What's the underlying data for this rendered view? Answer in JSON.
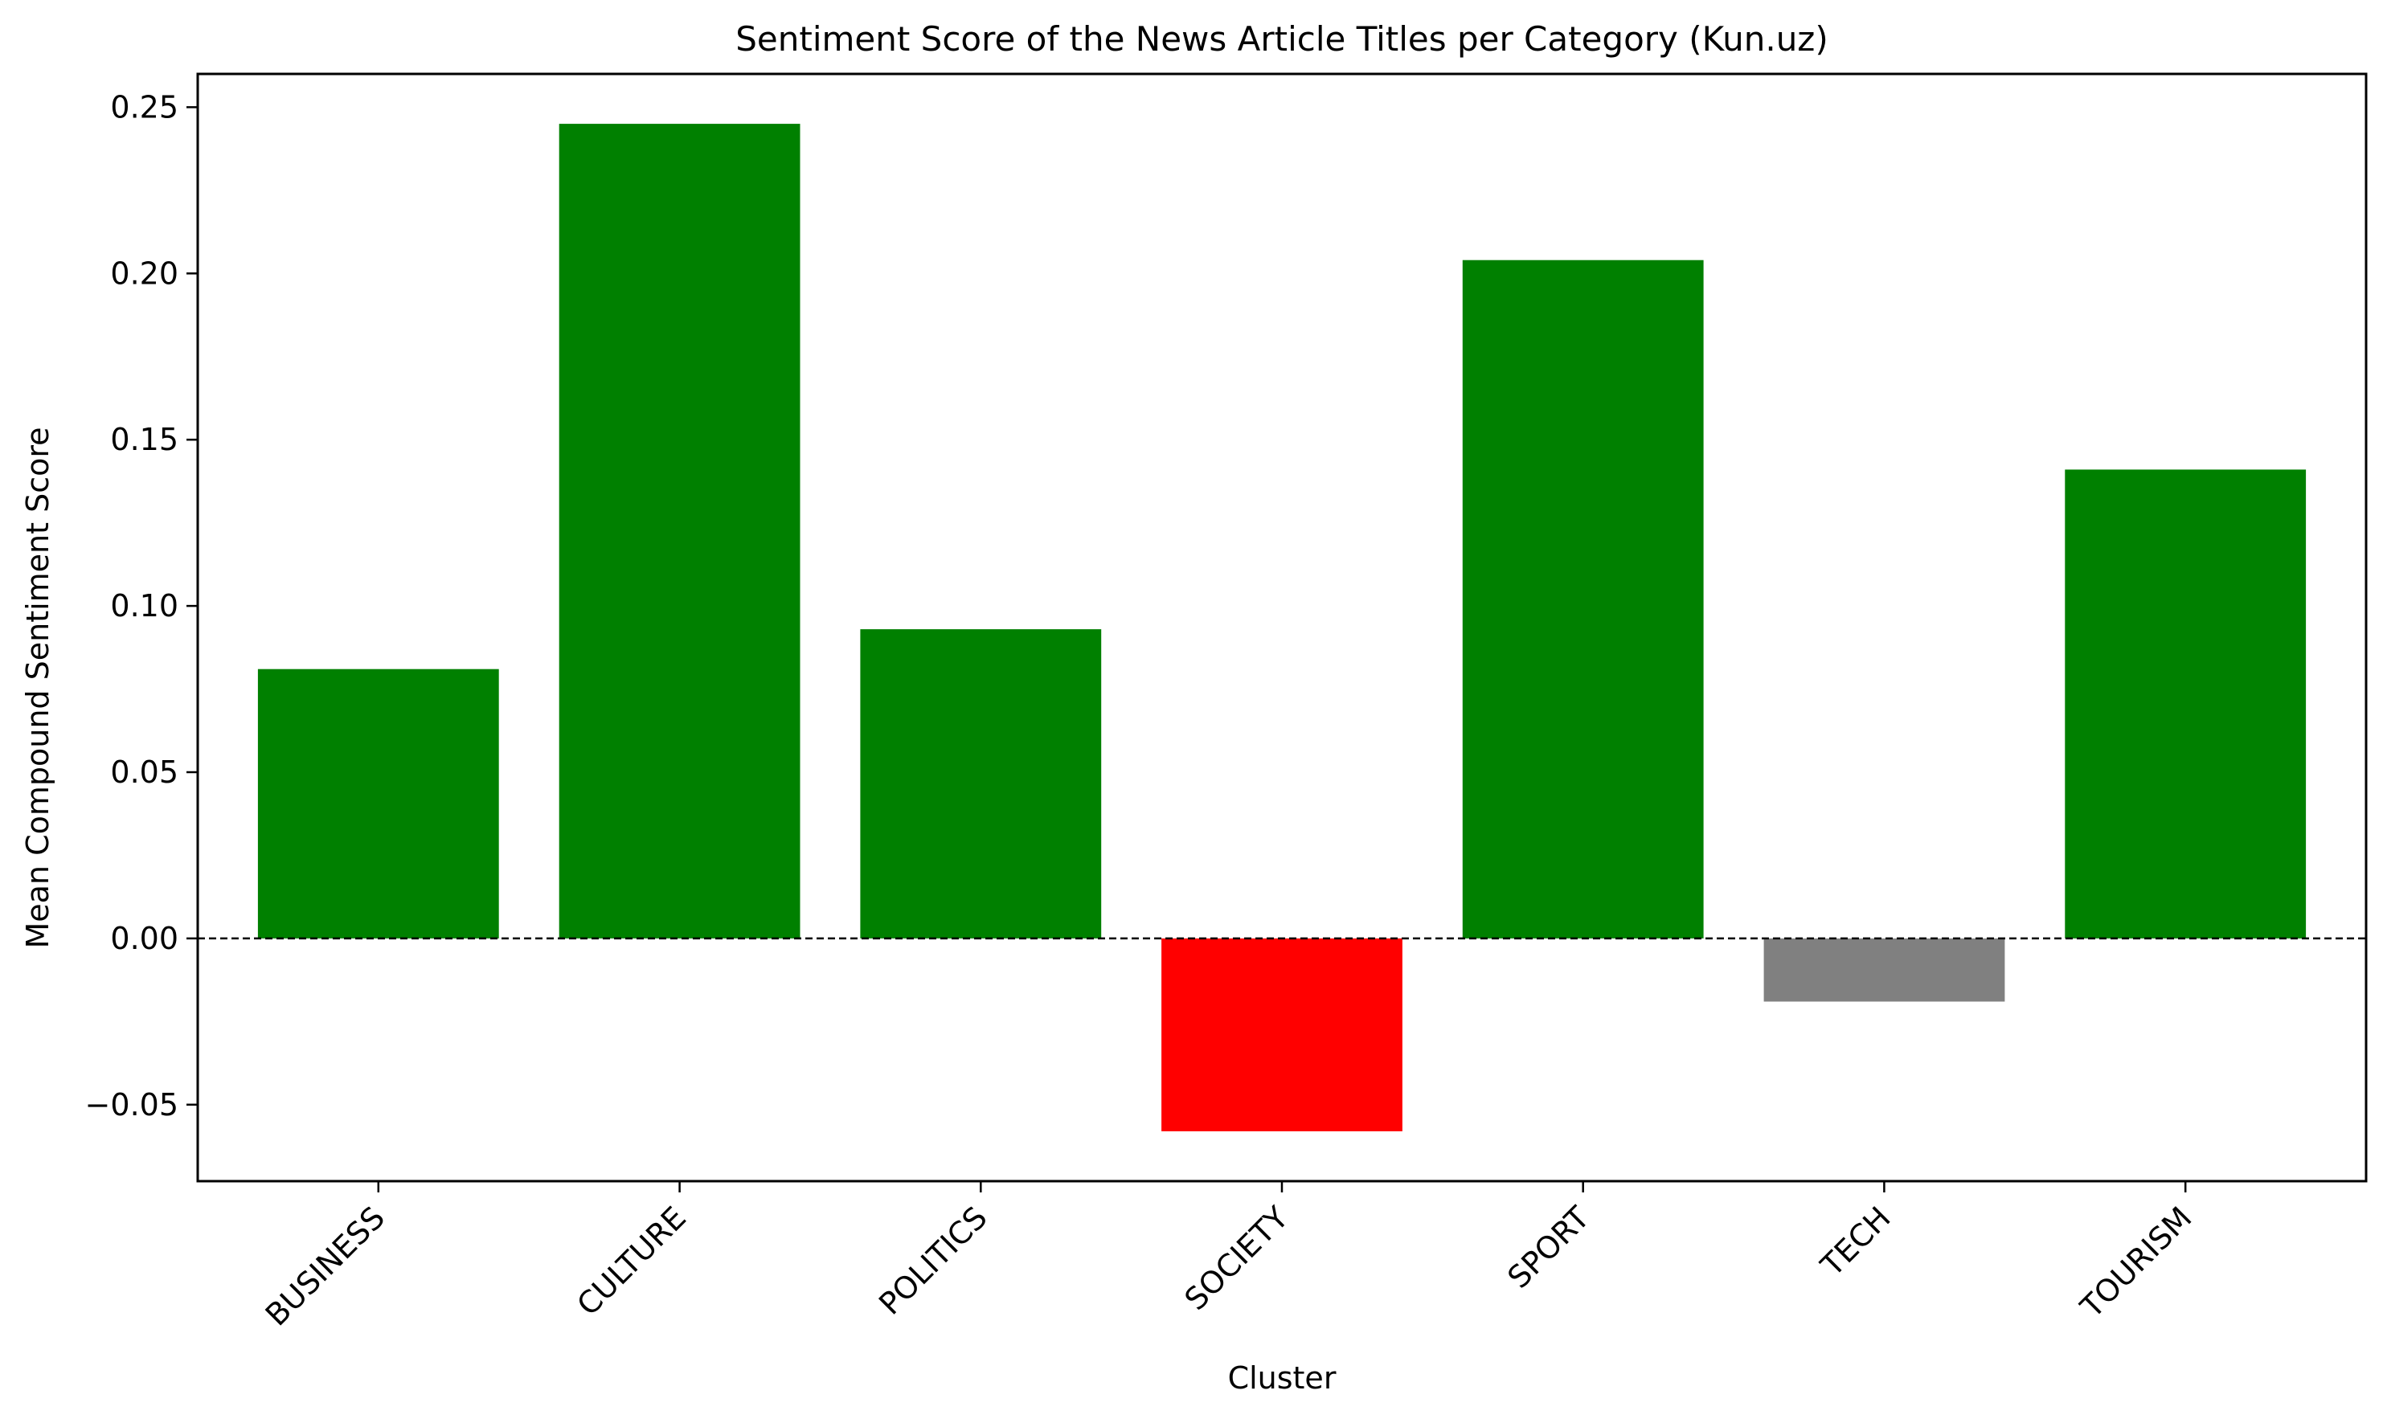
{
  "chart_data": {
    "type": "bar",
    "title": "Sentiment Score of the News Article Titles per Category (Kun.uz)",
    "xlabel": "Cluster",
    "ylabel": "Mean Compound Sentiment Score",
    "categories": [
      "BUSINESS",
      "CULTURE",
      "POLITICS",
      "SOCIETY",
      "SPORT",
      "TECH",
      "TOURISM"
    ],
    "values": [
      0.081,
      0.245,
      0.093,
      -0.058,
      0.204,
      -0.019,
      0.141
    ],
    "ylim": [
      -0.073,
      0.26
    ],
    "yticks": [
      -0.05,
      0.0,
      0.05,
      0.1,
      0.15,
      0.2,
      0.25
    ],
    "ytick_labels": [
      "−0.05",
      "0.00",
      "0.05",
      "0.10",
      "0.15",
      "0.20",
      "0.25"
    ],
    "reference_line": {
      "y": 0,
      "style": "dashed",
      "color": "#000000"
    },
    "colors": {
      "positive": "#008000",
      "negative": "#ff0000",
      "neutral": "#808080"
    },
    "bar_colors": [
      "positive",
      "positive",
      "positive",
      "negative",
      "positive",
      "neutral",
      "positive"
    ],
    "grid": false,
    "legend": "none"
  }
}
